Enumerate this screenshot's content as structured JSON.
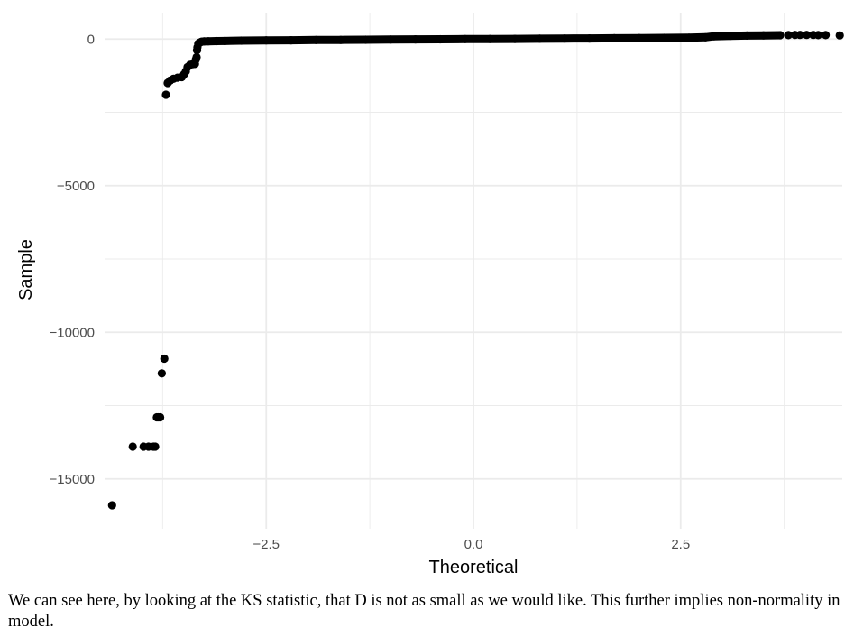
{
  "chart_data": {
    "type": "scatter",
    "title": "",
    "xlabel": "Theoretical",
    "ylabel": "Sample",
    "xlim": [
      -4.45,
      4.45
    ],
    "ylim": [
      -16700,
      900
    ],
    "x_ticks": [
      {
        "value": -2.5,
        "label": "−2.5"
      },
      {
        "value": 0.0,
        "label": "0.0"
      },
      {
        "value": 2.5,
        "label": "2.5"
      }
    ],
    "y_ticks": [
      {
        "value": 0,
        "label": "0"
      },
      {
        "value": -5000,
        "label": "−5000"
      },
      {
        "value": -10000,
        "label": "−10000"
      },
      {
        "value": -15000,
        "label": "−15000"
      }
    ],
    "x_minor_gridlines": [
      -3.75,
      -1.25,
      1.25,
      3.75
    ],
    "y_minor_gridlines": [
      -2500,
      -7500,
      -12500
    ],
    "grid": true,
    "legend": "none",
    "point_color": "#000000",
    "gridline_color": "#ebebeb",
    "series": [
      {
        "points": [
          [
            -4.36,
            -15900
          ],
          [
            -4.11,
            -13900
          ],
          [
            -3.98,
            -13900
          ],
          [
            -3.92,
            -13900
          ],
          [
            -3.86,
            -13900
          ],
          [
            -3.84,
            -13900
          ],
          [
            -3.82,
            -12900
          ],
          [
            -3.8,
            -12900
          ],
          [
            -3.78,
            -12900
          ],
          [
            -3.76,
            -11400
          ],
          [
            -3.73,
            -10900
          ],
          [
            -3.71,
            -1900
          ],
          [
            -3.69,
            -1500
          ],
          [
            -3.66,
            -1420
          ],
          [
            -3.62,
            -1360
          ],
          [
            -3.57,
            -1320
          ],
          [
            -3.52,
            -1300
          ],
          [
            -3.49,
            -1200
          ],
          [
            -3.47,
            -1100
          ],
          [
            -3.45,
            -960
          ],
          [
            -3.42,
            -880
          ],
          [
            -3.39,
            -860
          ],
          [
            -3.36,
            -850
          ],
          [
            -3.35,
            -700
          ],
          [
            -3.34,
            -620
          ],
          [
            -3.335,
            -380
          ],
          [
            -3.33,
            -280
          ],
          [
            -3.32,
            -160
          ],
          [
            -3.3,
            -120
          ],
          [
            -3.28,
            -90
          ],
          [
            -3.25,
            -80
          ],
          [
            -3.2,
            -75
          ],
          [
            -3.1,
            -70
          ],
          [
            -3.0,
            -65
          ],
          [
            -2.8,
            -55
          ],
          [
            -2.5,
            -45
          ],
          [
            -2.2,
            -40
          ],
          [
            -1.9,
            -32
          ],
          [
            -1.6,
            -28
          ],
          [
            -1.3,
            -22
          ],
          [
            -1.0,
            -18
          ],
          [
            -0.7,
            -12
          ],
          [
            -0.4,
            -8
          ],
          [
            -0.1,
            -3
          ],
          [
            0.2,
            2
          ],
          [
            0.5,
            6
          ],
          [
            0.8,
            11
          ],
          [
            1.1,
            16
          ],
          [
            1.4,
            20
          ],
          [
            1.7,
            26
          ],
          [
            2.0,
            32
          ],
          [
            2.3,
            38
          ],
          [
            2.6,
            45
          ],
          [
            2.8,
            60
          ],
          [
            2.9,
            95
          ],
          [
            3.1,
            110
          ],
          [
            3.3,
            120
          ],
          [
            3.5,
            125
          ],
          [
            3.7,
            130
          ],
          [
            3.8,
            135
          ],
          [
            3.88,
            140
          ],
          [
            3.94,
            140
          ],
          [
            4.02,
            140
          ],
          [
            4.1,
            140
          ],
          [
            4.16,
            135
          ],
          [
            4.25,
            135
          ],
          [
            4.42,
            125
          ]
        ]
      }
    ]
  },
  "caption": {
    "text": "We can see here, by looking at the KS statistic, that D is not as small as we would like. This further implies non-normality in model."
  }
}
